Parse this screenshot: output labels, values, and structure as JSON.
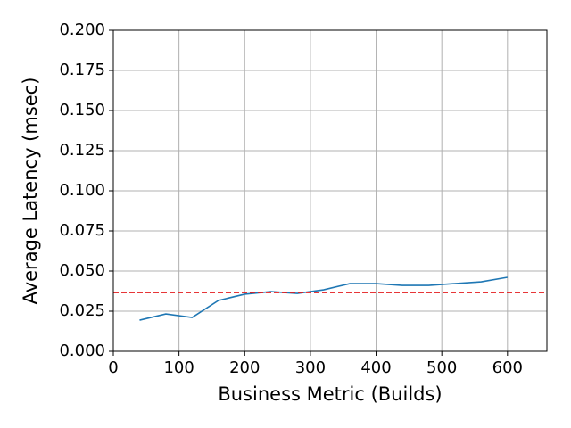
{
  "chart_data": {
    "type": "line",
    "xlabel": "Business Metric (Builds)",
    "ylabel": "Average Latency (msec)",
    "x": [
      40,
      80,
      120,
      160,
      200,
      240,
      280,
      320,
      360,
      400,
      440,
      480,
      520,
      560,
      600
    ],
    "series": [
      {
        "color": "#1f77b4",
        "values": [
          0.0194,
          0.0233,
          0.0211,
          0.0317,
          0.0356,
          0.0372,
          0.0361,
          0.0383,
          0.0422,
          0.0422,
          0.0411,
          0.0411,
          0.0422,
          0.0433,
          0.0461
        ]
      }
    ],
    "reference_line": {
      "value": 0.0367,
      "color": "#e41a1c"
    },
    "xlim": [
      0,
      660
    ],
    "ylim": [
      0,
      0.2
    ],
    "xticks": [
      0,
      100,
      200,
      300,
      400,
      500,
      600
    ],
    "yticks": [
      {
        "value": 0,
        "label": "0.000"
      },
      {
        "value": 0.025,
        "label": "0.025"
      },
      {
        "value": 0.05,
        "label": "0.050"
      },
      {
        "value": 0.075,
        "label": "0.075"
      },
      {
        "value": 0.1,
        "label": "0.100"
      },
      {
        "value": 0.125,
        "label": "0.125"
      },
      {
        "value": 0.15,
        "label": "0.150"
      },
      {
        "value": 0.175,
        "label": "0.175"
      },
      {
        "value": 0.2,
        "label": "0.200"
      }
    ],
    "grid": true
  }
}
